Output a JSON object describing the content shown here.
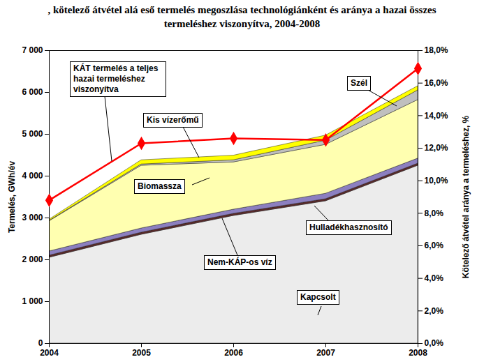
{
  "chart_data": {
    "type": "area",
    "stacked": true,
    "title": ", kötelező átvétel alá eső termelés megoszlása technológiánként és aránya a hazai összes termeléshez viszonyítva, 2004-2008",
    "x": [
      2004,
      2005,
      2006,
      2007,
      2008
    ],
    "xlim": [
      2004,
      2008
    ],
    "xticks": [
      2004,
      2005,
      2006,
      2007,
      2008
    ],
    "ylabel": "Termelés, GWh/év",
    "ylim": [
      0,
      7000
    ],
    "yticks": [
      0,
      {
        "value": 1000,
        "label": "1 000"
      },
      {
        "value": 2000,
        "label": "2 000"
      },
      {
        "value": 3000,
        "label": "3 000"
      },
      {
        "value": 4000,
        "label": "4 000"
      },
      {
        "value": 5000,
        "label": "5 000"
      },
      {
        "value": 6000,
        "label": "6 000"
      },
      {
        "value": 7000,
        "label": "7 000"
      }
    ],
    "y2label": "Kötelező átvétel aránya a termeléshez, %",
    "y2lim": [
      0,
      18
    ],
    "y2ticks": [
      {
        "value": 0,
        "label": "0,0%"
      },
      {
        "value": 2,
        "label": "2,0%"
      },
      {
        "value": 4,
        "label": "4,0%"
      },
      {
        "value": 6,
        "label": "6,0%"
      },
      {
        "value": 8,
        "label": "8,0%"
      },
      {
        "value": 10,
        "label": "10,0%"
      },
      {
        "value": 12,
        "label": "12,0%"
      },
      {
        "value": 14,
        "label": "14,0%"
      },
      {
        "value": 16,
        "label": "16,0%"
      },
      {
        "value": 18,
        "label": "18,0%"
      }
    ],
    "grid": false,
    "series": [
      {
        "name": "Kapcsolt",
        "type": "area",
        "color": "#ececec",
        "values": [
          2050,
          2600,
          3050,
          3400,
          4250
        ]
      },
      {
        "name": "Nem-KÁP-os víz",
        "type": "area",
        "color": "#5a2a2a",
        "values": [
          50,
          50,
          50,
          50,
          50
        ]
      },
      {
        "name": "Hulladékhasznosító",
        "type": "area",
        "color": "#8c7fc0",
        "values": [
          100,
          100,
          100,
          130,
          120
        ]
      },
      {
        "name": "Biomassza",
        "type": "area",
        "color": "#ffffb0",
        "values": [
          720,
          1500,
          1130,
          1170,
          1400
        ]
      },
      {
        "name": "Szél",
        "type": "area",
        "color": "#bfbfbf",
        "values": [
          10,
          30,
          50,
          100,
          230
        ]
      },
      {
        "name": "Kis vízerőmű",
        "type": "area",
        "color": "#ffff00",
        "values": [
          30,
          100,
          110,
          120,
          100
        ]
      },
      {
        "name": "KÁT termelés a teljes hazai termeléshez viszonyítva",
        "type": "line",
        "axis": "y2",
        "color": "#ff0000",
        "marker": "diamond",
        "values": [
          8.8,
          12.3,
          12.6,
          12.5,
          16.9
        ]
      }
    ]
  }
}
